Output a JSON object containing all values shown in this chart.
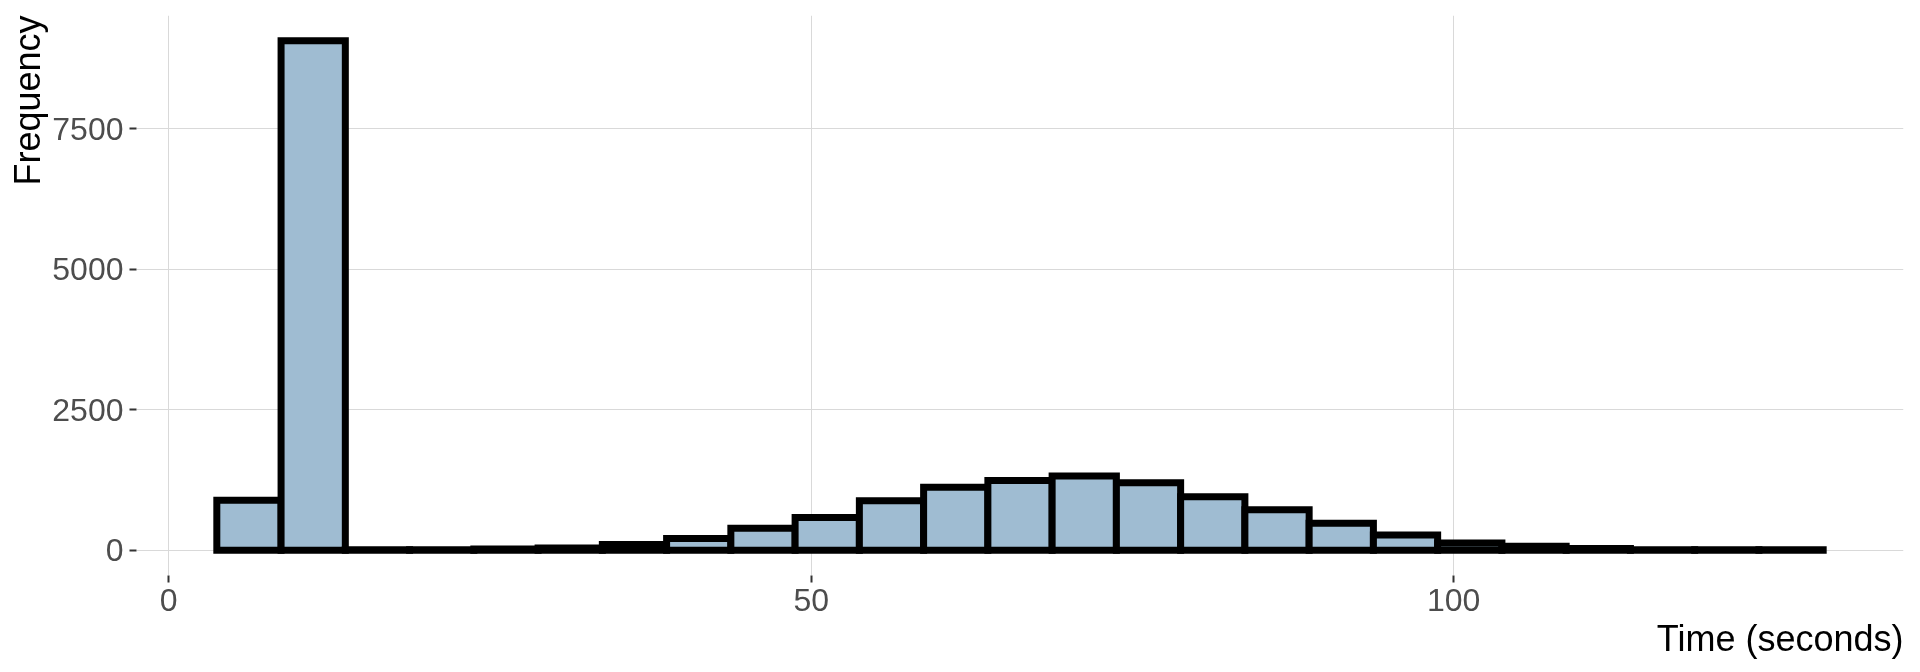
{
  "chart_data": {
    "type": "histogram",
    "xlabel": "Time (seconds)",
    "ylabel": "Frequency",
    "bins": [
      3.75,
      8.75,
      13.75,
      18.75,
      23.75,
      28.75,
      33.75,
      38.75,
      43.75,
      48.75,
      53.75,
      58.75,
      63.75,
      68.75,
      73.75,
      78.75,
      83.75,
      88.75,
      93.75,
      98.75,
      103.75,
      108.75,
      113.75,
      118.75,
      123.75,
      128.75
    ],
    "values": [
      890,
      9060,
      10,
      10,
      20,
      40,
      100,
      210,
      390,
      580,
      880,
      1120,
      1240,
      1320,
      1200,
      950,
      720,
      480,
      270,
      130,
      70,
      30,
      10,
      10,
      10
    ],
    "color": "#9fbcd2",
    "xlim": [
      -2.5,
      135
    ],
    "ylim": [
      -450,
      9510
    ],
    "xticks": [
      0,
      50,
      100
    ],
    "yticks": [
      0,
      2500,
      5000,
      7500
    ],
    "grid": true
  }
}
